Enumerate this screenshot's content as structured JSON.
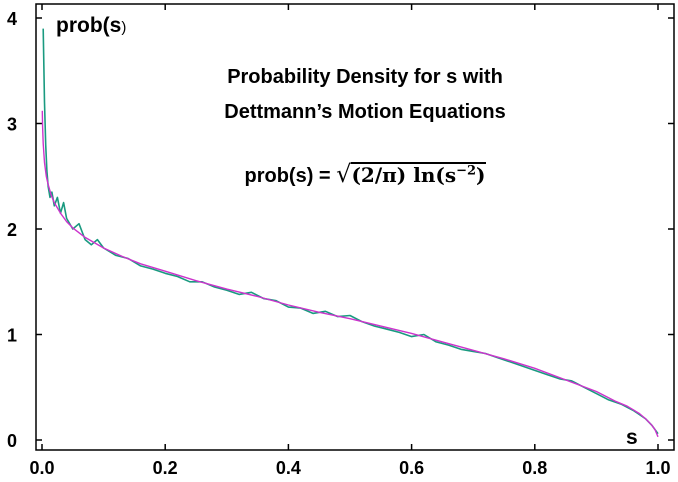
{
  "chart_data": {
    "type": "line",
    "title_line1": "Probability Density for s with",
    "title_line2": "Dettmann’s Motion Equations",
    "formula": {
      "lhs": "prob(s) = ",
      "radical": "√",
      "rhs": "(2/π) ln(s",
      "exp": "−2",
      "close": ")"
    },
    "ylabel": "prob(s",
    "ylabel_close": ")",
    "xlabel": "s",
    "xlim": [
      0,
      1
    ],
    "ylim": [
      0,
      4
    ],
    "xticks": [
      "0.0",
      "0.2",
      "0.4",
      "0.6",
      "0.8",
      "1.0"
    ],
    "yticks": [
      "0",
      "1",
      "2",
      "3",
      "4"
    ],
    "grid": false,
    "series": [
      {
        "color": "#cc33cc",
        "x": [
          0.0005,
          0.001,
          0.002,
          0.004,
          0.007,
          0.01,
          0.015,
          0.02,
          0.03,
          0.04,
          0.05,
          0.07,
          0.1,
          0.13,
          0.16,
          0.2,
          0.25,
          0.3,
          0.35,
          0.4,
          0.45,
          0.5,
          0.55,
          0.6,
          0.65,
          0.7,
          0.75,
          0.8,
          0.85,
          0.9,
          0.93,
          0.95,
          0.97,
          0.98,
          0.99,
          0.995,
          1.0
        ],
        "y": [
          3.12,
          2.97,
          2.81,
          2.63,
          2.5,
          2.42,
          2.32,
          2.25,
          2.15,
          2.07,
          2.01,
          1.92,
          1.82,
          1.74,
          1.67,
          1.6,
          1.51,
          1.43,
          1.36,
          1.28,
          1.21,
          1.15,
          1.08,
          1.01,
          0.93,
          0.85,
          0.77,
          0.68,
          0.57,
          0.46,
          0.37,
          0.32,
          0.25,
          0.2,
          0.14,
          0.1,
          0.03
        ]
      },
      {
        "color": "#1a9a80",
        "x": [
          0.002,
          0.004,
          0.006,
          0.008,
          0.01,
          0.013,
          0.016,
          0.02,
          0.025,
          0.03,
          0.035,
          0.04,
          0.05,
          0.06,
          0.07,
          0.08,
          0.09,
          0.1,
          0.12,
          0.14,
          0.16,
          0.18,
          0.2,
          0.22,
          0.24,
          0.26,
          0.28,
          0.3,
          0.32,
          0.34,
          0.36,
          0.38,
          0.4,
          0.42,
          0.44,
          0.46,
          0.48,
          0.5,
          0.52,
          0.54,
          0.56,
          0.58,
          0.6,
          0.62,
          0.64,
          0.66,
          0.68,
          0.7,
          0.72,
          0.74,
          0.76,
          0.78,
          0.8,
          0.82,
          0.84,
          0.86,
          0.88,
          0.9,
          0.92,
          0.94,
          0.96,
          0.98,
          0.99,
          1.0
        ],
        "y": [
          3.9,
          3.2,
          2.8,
          2.55,
          2.4,
          2.3,
          2.35,
          2.22,
          2.3,
          2.15,
          2.25,
          2.1,
          2.0,
          2.05,
          1.9,
          1.85,
          1.9,
          1.82,
          1.75,
          1.72,
          1.65,
          1.62,
          1.58,
          1.55,
          1.5,
          1.5,
          1.45,
          1.42,
          1.38,
          1.4,
          1.34,
          1.32,
          1.26,
          1.25,
          1.2,
          1.22,
          1.17,
          1.18,
          1.12,
          1.08,
          1.05,
          1.02,
          0.98,
          1.0,
          0.93,
          0.9,
          0.86,
          0.84,
          0.82,
          0.78,
          0.74,
          0.7,
          0.66,
          0.62,
          0.58,
          0.56,
          0.5,
          0.44,
          0.38,
          0.34,
          0.28,
          0.2,
          0.14,
          0.06
        ]
      }
    ]
  }
}
